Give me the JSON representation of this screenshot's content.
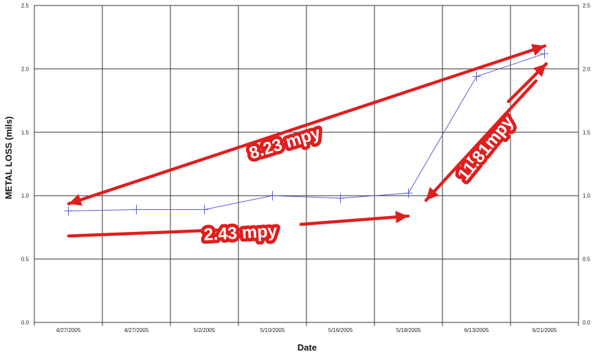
{
  "chart_data": {
    "type": "line",
    "xlabel": "Date",
    "ylabel": "METAL LOSS (mils)",
    "ylim": [
      0,
      2.5
    ],
    "y_ticks": [
      "0.0",
      "0.5",
      "1.0",
      "1.5",
      "2.0",
      "2.5"
    ],
    "categories": [
      "4/27/2005",
      "4/27/2005",
      "5/2/2005",
      "5/10/2005",
      "5/16/2005",
      "5/18/2005",
      "6/13/2005",
      "6/21/2005"
    ],
    "series": [
      {
        "values": [
          0.88,
          0.89,
          0.89,
          1.0,
          0.98,
          1.02,
          1.94,
          2.12
        ]
      }
    ],
    "grid": true,
    "line_color": "#5b5bd6",
    "annotation_color": "#e01e1e",
    "annotations": [
      {
        "text": "8.23 mpy"
      },
      {
        "text": "2.43 mpy"
      },
      {
        "text": "11.81mpy"
      }
    ]
  }
}
